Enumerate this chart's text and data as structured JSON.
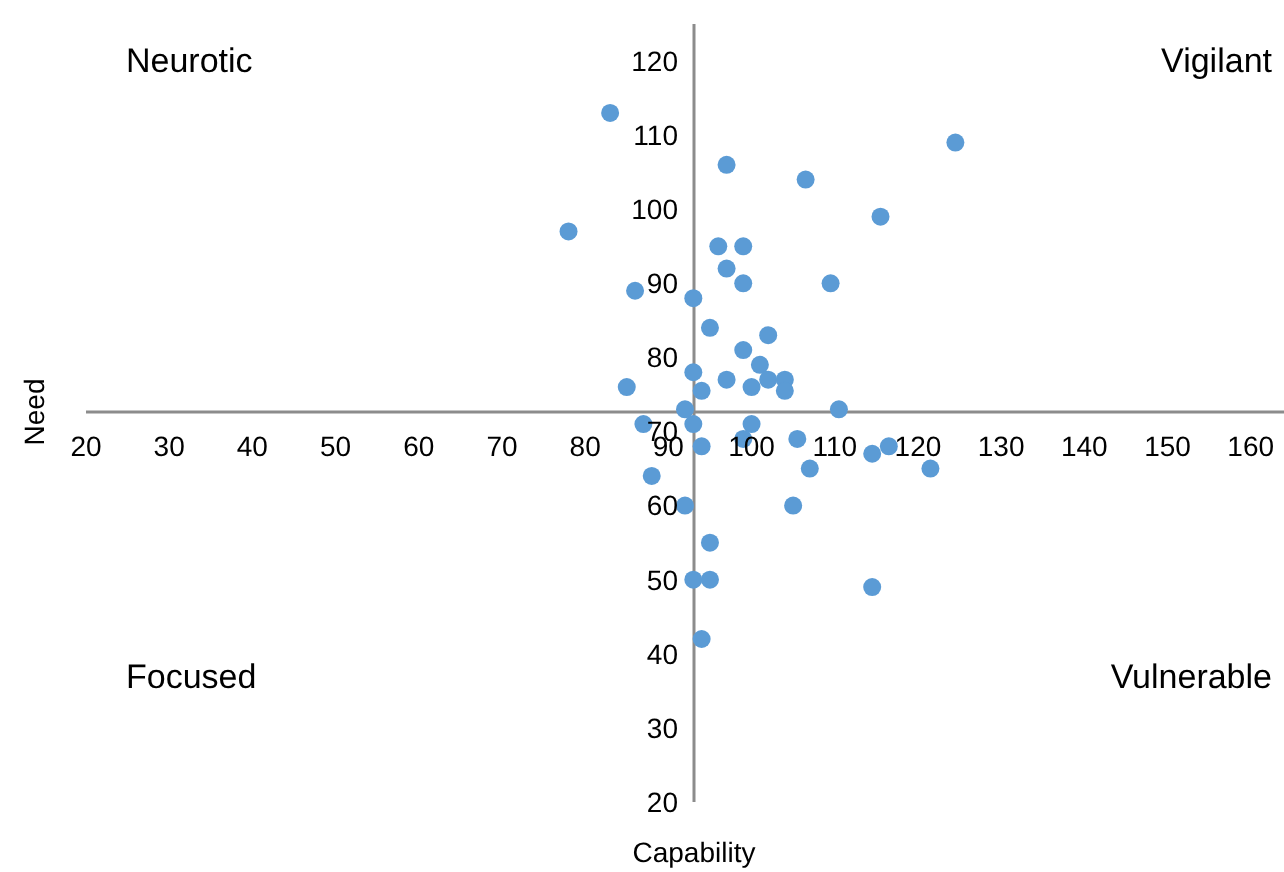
{
  "chart_data": {
    "type": "scatter",
    "xlabel": "Capability",
    "ylabel": "Need",
    "annotations": [
      "Neurotic",
      "Vigilant",
      "Focused",
      "Vulnerable"
    ],
    "x": [
      83,
      78,
      86,
      97,
      106.5,
      124.5,
      115.5,
      96,
      99,
      97,
      99,
      109.5,
      93,
      95,
      102,
      99,
      101,
      93,
      97,
      100,
      102,
      104,
      85,
      94,
      104,
      92,
      110.5,
      87,
      93,
      100,
      99,
      105.5,
      94,
      114.5,
      116.5,
      107,
      121.5,
      88,
      92,
      105,
      95,
      93,
      95,
      114.5,
      94
    ],
    "series": [
      {
        "color": "#5b9bd5",
        "values": [
          113,
          97,
          89,
          106,
          104,
          109,
          99,
          95,
          95,
          92,
          90,
          90,
          88,
          84,
          83,
          81,
          79,
          78,
          77,
          76,
          77,
          77,
          76,
          75.5,
          75.5,
          73,
          73,
          71,
          71,
          71,
          69,
          69,
          68,
          67,
          68,
          65,
          65,
          64,
          60,
          60,
          55,
          50,
          50,
          49,
          42
        ]
      }
    ],
    "xlim": [
      20,
      164
    ],
    "ylim": [
      20,
      125
    ],
    "xticks": [
      20,
      30,
      40,
      50,
      60,
      70,
      80,
      90,
      100,
      110,
      120,
      130,
      140,
      150,
      160
    ],
    "yticks": [
      20,
      30,
      40,
      50,
      60,
      70,
      80,
      90,
      100,
      110,
      120
    ],
    "grid": false,
    "marker": "circle"
  }
}
